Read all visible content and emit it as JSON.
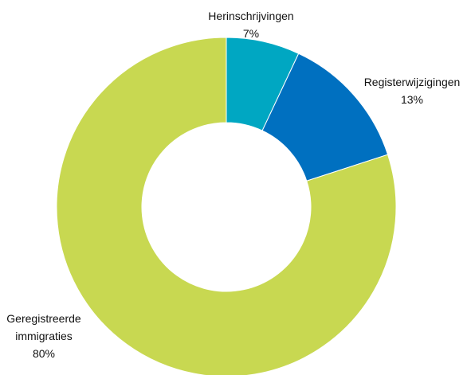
{
  "chart_data": {
    "type": "donut",
    "categories": [
      "Herinschrijvingen",
      "Registerwijzigingen",
      "Geregistreerde immigraties"
    ],
    "values": [
      7,
      13,
      80
    ],
    "value_labels": [
      "7%",
      "13%",
      "80%"
    ],
    "colors": [
      "#00a7c2",
      "#0070c0",
      "#c8d851"
    ]
  }
}
